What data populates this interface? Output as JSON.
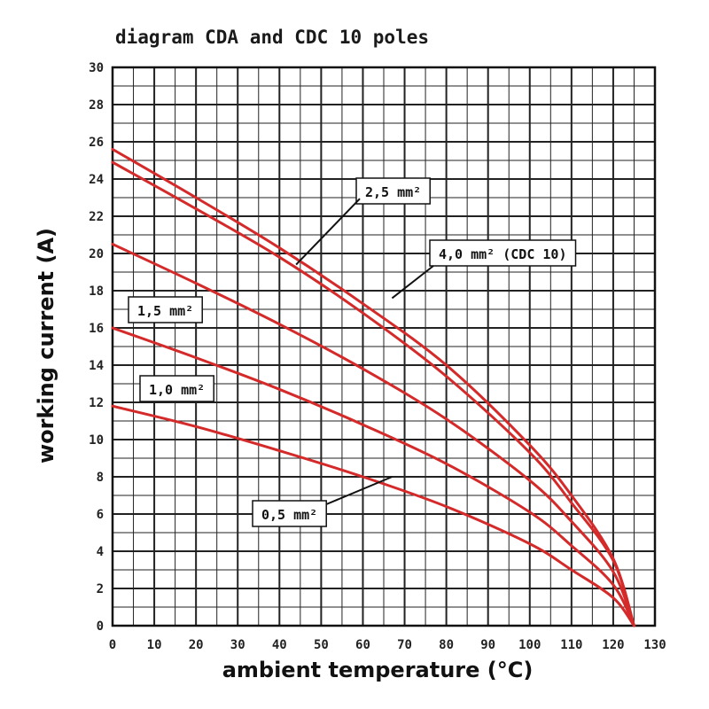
{
  "chart_data": {
    "type": "line",
    "title": "diagram CDA and CDC 10 poles",
    "xlabel": "ambient temperature (°C)",
    "ylabel": "working current (A)",
    "xlim": [
      0,
      130
    ],
    "ylim": [
      0,
      30
    ],
    "x_ticks": [
      0,
      10,
      20,
      30,
      40,
      50,
      60,
      70,
      80,
      90,
      100,
      110,
      120,
      130
    ],
    "y_ticks": [
      0,
      2,
      4,
      6,
      8,
      10,
      12,
      14,
      16,
      18,
      20,
      22,
      24,
      26,
      28,
      30
    ],
    "grid": true,
    "series": [
      {
        "name": "4,0 mm² (CDC 10)",
        "x": [
          0,
          20,
          40,
          60,
          80,
          100,
          110,
          120,
          125
        ],
        "y": [
          25.6,
          23.0,
          20.3,
          17.3,
          14.0,
          9.7,
          7.0,
          3.6,
          0
        ]
      },
      {
        "name": "2,5 mm²",
        "x": [
          0,
          20,
          40,
          60,
          80,
          100,
          110,
          120,
          125
        ],
        "y": [
          24.9,
          22.4,
          19.8,
          16.8,
          13.4,
          9.3,
          6.6,
          3.5,
          0
        ]
      },
      {
        "name": "1,5 mm²",
        "x": [
          0,
          20,
          40,
          60,
          80,
          100,
          110,
          120,
          125
        ],
        "y": [
          20.5,
          18.4,
          16.2,
          13.8,
          11.1,
          7.8,
          5.6,
          2.9,
          0
        ]
      },
      {
        "name": "1,0 mm²",
        "x": [
          0,
          20,
          40,
          60,
          80,
          100,
          110,
          120,
          125
        ],
        "y": [
          16.0,
          14.4,
          12.7,
          10.8,
          8.7,
          6.1,
          4.3,
          2.2,
          0
        ]
      },
      {
        "name": "0,5 mm²",
        "x": [
          0,
          20,
          40,
          60,
          80,
          100,
          110,
          120,
          125
        ],
        "y": [
          11.8,
          10.7,
          9.4,
          8.0,
          6.4,
          4.4,
          3.0,
          1.5,
          0
        ]
      }
    ],
    "annotations": [
      {
        "text": "2,5 mm²",
        "series": 1,
        "pointer_to": [
          44,
          19.4
        ]
      },
      {
        "text": "4,0 mm² (CDC 10)",
        "series": 0,
        "pointer_to": [
          67,
          17.6
        ]
      },
      {
        "text": "1,5 mm²",
        "series": 2
      },
      {
        "text": "1,0 mm²",
        "series": 3
      },
      {
        "text": "0,5 mm²",
        "series": 4,
        "pointer_to": [
          67,
          8
        ]
      }
    ],
    "line_color": "#d42a2a"
  }
}
